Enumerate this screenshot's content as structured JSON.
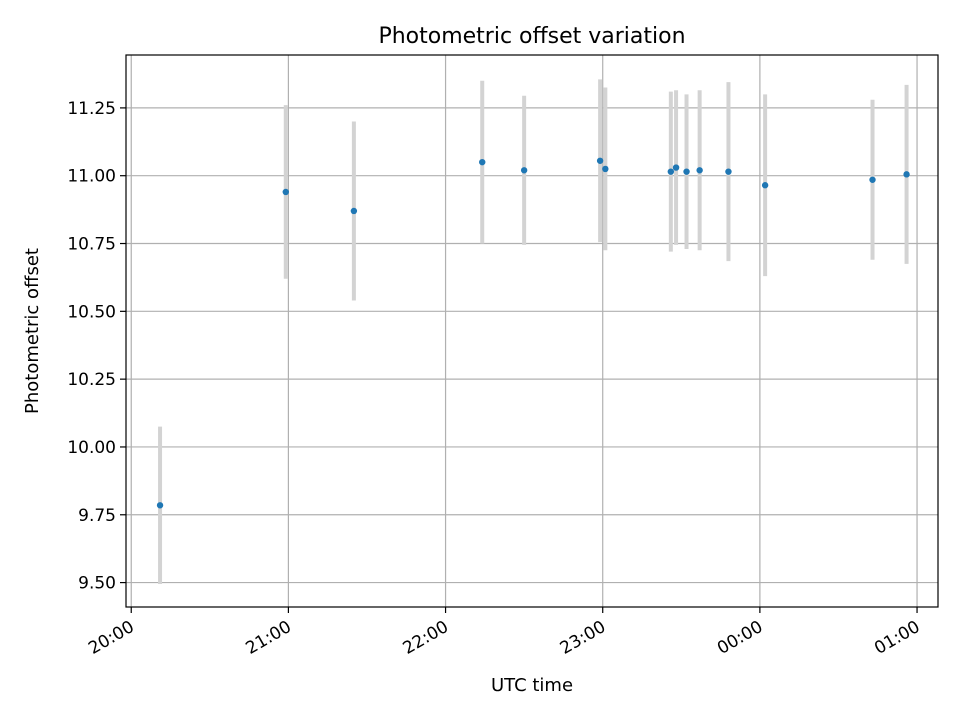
{
  "chart_data": {
    "type": "scatter",
    "title": "Photometric offset variation",
    "xlabel": "UTC time",
    "ylabel": "Photometric offset",
    "xlim": [
      "19:58",
      "01:08"
    ],
    "ylim": [
      9.41,
      11.445
    ],
    "xticks": [
      "20:00",
      "21:00",
      "22:00",
      "23:00",
      "00:00",
      "01:00"
    ],
    "yticks": [
      "9.50",
      "9.75",
      "10.00",
      "10.25",
      "10.50",
      "10.75",
      "11.00",
      "11.25"
    ],
    "grid": true,
    "colors": {
      "point": "#1f77b4",
      "errorbar": "#d3d3d3",
      "grid": "#b0b0b0"
    },
    "points": [
      {
        "x": "20:11",
        "y": 9.785,
        "err": 0.29
      },
      {
        "x": "20:59",
        "y": 10.94,
        "err": 0.32
      },
      {
        "x": "21:25",
        "y": 10.87,
        "err": 0.33
      },
      {
        "x": "22:14",
        "y": 11.05,
        "err": 0.3
      },
      {
        "x": "22:30",
        "y": 11.02,
        "err": 0.275
      },
      {
        "x": "22:59",
        "y": 11.055,
        "err": 0.3
      },
      {
        "x": "23:01",
        "y": 11.025,
        "err": 0.3
      },
      {
        "x": "23:26",
        "y": 11.015,
        "err": 0.295
      },
      {
        "x": "23:28",
        "y": 11.03,
        "err": 0.285
      },
      {
        "x": "23:32",
        "y": 11.015,
        "err": 0.285
      },
      {
        "x": "23:37",
        "y": 11.02,
        "err": 0.295
      },
      {
        "x": "23:48",
        "y": 11.015,
        "err": 0.33
      },
      {
        "x": "00:02",
        "y": 10.965,
        "err": 0.335
      },
      {
        "x": "00:43",
        "y": 10.985,
        "err": 0.295
      },
      {
        "x": "00:56",
        "y": 11.005,
        "err": 0.33
      }
    ]
  }
}
